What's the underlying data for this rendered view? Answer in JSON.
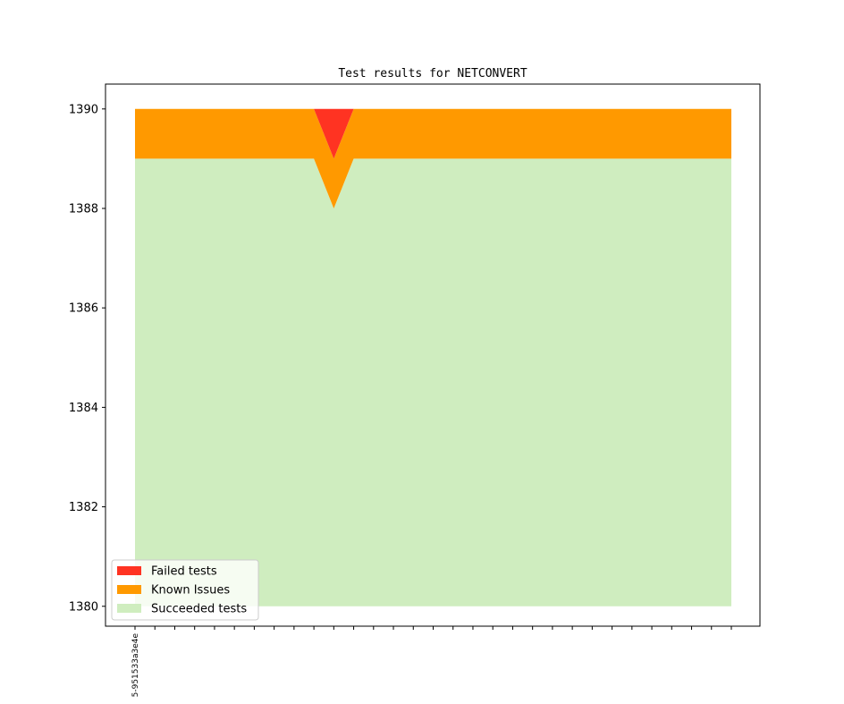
{
  "chart_data": {
    "type": "area",
    "title": "Test results for NETCONVERT",
    "xlabel": "",
    "ylabel": "",
    "ylim": [
      1379.6,
      1390.5
    ],
    "yticks": [
      1380,
      1382,
      1384,
      1386,
      1388,
      1390
    ],
    "x_count": 31,
    "x_tick_labels": [
      "5-951533a3e4e",
      "",
      "",
      "",
      "",
      "",
      "",
      "",
      "",
      "",
      "",
      "",
      "",
      "",
      "",
      "",
      "",
      "",
      "",
      "",
      "",
      "",
      "",
      "",
      "",
      "",
      "",
      "",
      "",
      "",
      ""
    ],
    "stack_base": 1380,
    "series": [
      {
        "name": "Succeeded tests",
        "color": "#cfedbf",
        "values": [
          1389,
          1389,
          1389,
          1389,
          1389,
          1389,
          1389,
          1389,
          1389,
          1389,
          1388,
          1389,
          1389,
          1389,
          1389,
          1389,
          1389,
          1389,
          1389,
          1389,
          1389,
          1389,
          1389,
          1389,
          1389,
          1389,
          1389,
          1389,
          1389,
          1389,
          1389
        ]
      },
      {
        "name": "Known Issues",
        "color": "#ff9900",
        "values": [
          1,
          1,
          1,
          1,
          1,
          1,
          1,
          1,
          1,
          1,
          1,
          1,
          1,
          1,
          1,
          1,
          1,
          1,
          1,
          1,
          1,
          1,
          1,
          1,
          1,
          1,
          1,
          1,
          1,
          1,
          1
        ]
      },
      {
        "name": "Failed tests",
        "color": "#ff3322",
        "values": [
          0,
          0,
          0,
          0,
          0,
          0,
          0,
          0,
          0,
          0,
          1,
          0,
          0,
          0,
          0,
          0,
          0,
          0,
          0,
          0,
          0,
          0,
          0,
          0,
          0,
          0,
          0,
          0,
          0,
          0,
          0
        ]
      }
    ],
    "legend_order": [
      "Failed tests",
      "Known Issues",
      "Succeeded tests"
    ],
    "legend_position": "lower-left",
    "grid": false
  }
}
